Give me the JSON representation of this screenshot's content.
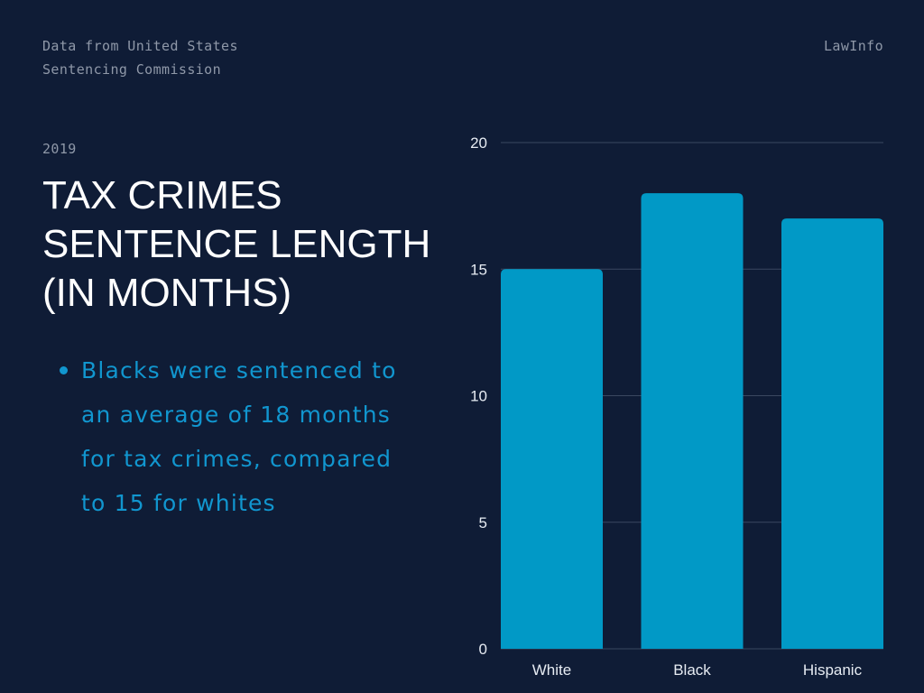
{
  "header": {
    "source_line1": "Data from United States",
    "source_line2": "Sentencing Commission",
    "brand": "LawInfo"
  },
  "content": {
    "year": "2019",
    "title_lines": [
      "TAX CRIMES",
      "SENTENCE LENGTH",
      "(IN MONTHS)"
    ],
    "bullets": [
      [
        "Blacks were sentenced to",
        "an average of 18 months",
        "for tax crimes, compared",
        "to 15 for whites"
      ]
    ]
  },
  "colors": {
    "background": "#0f1c36",
    "bar": "#0199c6",
    "gridline": "#3a4760",
    "accent_text": "#1196cf"
  },
  "chart_data": {
    "type": "bar",
    "categories": [
      "White",
      "Black",
      "Hispanic"
    ],
    "values": [
      15,
      18,
      17
    ],
    "ylim": [
      0,
      20
    ],
    "yticks": [
      0,
      5,
      10,
      15,
      20
    ],
    "grid": true,
    "title": "",
    "xlabel": "",
    "ylabel": ""
  }
}
